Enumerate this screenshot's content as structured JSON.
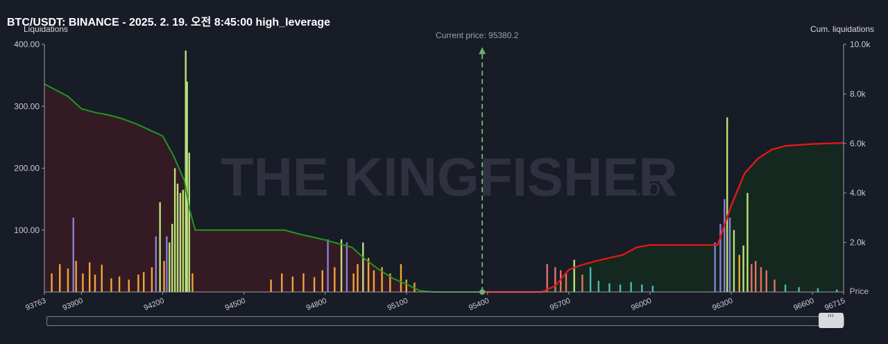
{
  "header": {
    "title": "BTC/USDT: BINANCE - 2025. 2. 19. 오전 8:45:00 high_leverage"
  },
  "watermark": {
    "text": "THE KINGFISHER",
    "suffix": ".io"
  },
  "colors": {
    "background": "#181c27",
    "long_cum": "#1f9a1f",
    "short_cum": "#e01818",
    "long_fill": "#3a1a22",
    "short_fill": "#15291f",
    "bar_orange": "#f0a63a",
    "bar_light_green": "#b9e27a",
    "bar_purple": "#8a7fd6",
    "bar_red": "#e8706a",
    "bar_teal": "#4fb7b7",
    "current_price_line": "#6cad6c"
  },
  "chart_data": {
    "type": "bar",
    "ylabel_left": "Liquidations",
    "ylabel_right": "Cum. liquidations",
    "xlabel": "Price",
    "xlim": [
      93763,
      96715
    ],
    "ylim_left": [
      0,
      400
    ],
    "ylim_right": [
      0,
      10000
    ],
    "y_ticks_left": [
      "400.00",
      "300.00",
      "200.00",
      "100.00"
    ],
    "y_ticks_right": [
      "10.0k",
      "8.0k",
      "6.0k",
      "4.0k",
      "2.0k"
    ],
    "x_ticks": [
      "93763",
      "93900",
      "94200",
      "94500",
      "94800",
      "95100",
      "95400",
      "95700",
      "96000",
      "96300",
      "96600",
      "96715"
    ],
    "current_price": 95380.2,
    "current_price_label": "Current price: 95380.2",
    "long_cumulative": [
      [
        93763,
        8400
      ],
      [
        93850,
        7900
      ],
      [
        93900,
        7400
      ],
      [
        93950,
        7250
      ],
      [
        94000,
        7150
      ],
      [
        94050,
        7000
      ],
      [
        94100,
        6800
      ],
      [
        94150,
        6550
      ],
      [
        94200,
        6300
      ],
      [
        94240,
        5500
      ],
      [
        94280,
        4500
      ],
      [
        94300,
        3300
      ],
      [
        94320,
        2500
      ],
      [
        94500,
        2500
      ],
      [
        94650,
        2500
      ],
      [
        94700,
        2350
      ],
      [
        94800,
        2100
      ],
      [
        94900,
        1800
      ],
      [
        94950,
        1300
      ],
      [
        95000,
        900
      ],
      [
        95050,
        550
      ],
      [
        95100,
        320
      ],
      [
        95150,
        50
      ],
      [
        95200,
        0
      ],
      [
        95380,
        0
      ]
    ],
    "short_cumulative": [
      [
        95380,
        0
      ],
      [
        95600,
        0
      ],
      [
        95650,
        250
      ],
      [
        95700,
        900
      ],
      [
        95750,
        1100
      ],
      [
        95800,
        1250
      ],
      [
        95900,
        1500
      ],
      [
        95950,
        1800
      ],
      [
        96000,
        1900
      ],
      [
        96100,
        1900
      ],
      [
        96200,
        1900
      ],
      [
        96250,
        1900
      ],
      [
        96300,
        3500
      ],
      [
        96350,
        4800
      ],
      [
        96400,
        5400
      ],
      [
        96450,
        5750
      ],
      [
        96500,
        5900
      ],
      [
        96600,
        5980
      ],
      [
        96715,
        6020
      ]
    ],
    "long_bars": [
      [
        93790,
        30,
        "orange"
      ],
      [
        93820,
        45,
        "orange"
      ],
      [
        93850,
        38,
        "orange"
      ],
      [
        93870,
        120,
        "purple"
      ],
      [
        93880,
        50,
        "orange"
      ],
      [
        93905,
        30,
        "orange"
      ],
      [
        93930,
        48,
        "orange"
      ],
      [
        93950,
        28,
        "orange"
      ],
      [
        93975,
        44,
        "orange"
      ],
      [
        94010,
        22,
        "orange"
      ],
      [
        94040,
        25,
        "orange"
      ],
      [
        94075,
        20,
        "orange"
      ],
      [
        94110,
        28,
        "orange"
      ],
      [
        94130,
        32,
        "orange"
      ],
      [
        94160,
        40,
        "orange"
      ],
      [
        94175,
        90,
        "purple"
      ],
      [
        94190,
        145,
        "green"
      ],
      [
        94205,
        50,
        "orange"
      ],
      [
        94215,
        90,
        "purple"
      ],
      [
        94225,
        80,
        "green"
      ],
      [
        94235,
        110,
        "green"
      ],
      [
        94245,
        200,
        "green"
      ],
      [
        94255,
        175,
        "green"
      ],
      [
        94265,
        160,
        "green"
      ],
      [
        94275,
        165,
        "green"
      ],
      [
        94285,
        390,
        "green"
      ],
      [
        94290,
        340,
        "green"
      ],
      [
        94298,
        225,
        "green"
      ],
      [
        94310,
        30,
        "orange"
      ],
      [
        94600,
        20,
        "orange"
      ],
      [
        94640,
        30,
        "orange"
      ],
      [
        94680,
        25,
        "orange"
      ],
      [
        94720,
        30,
        "orange"
      ],
      [
        94760,
        24,
        "orange"
      ],
      [
        94790,
        35,
        "orange"
      ],
      [
        94810,
        85,
        "purple"
      ],
      [
        94835,
        40,
        "orange"
      ],
      [
        94860,
        85,
        "green"
      ],
      [
        94880,
        80,
        "purple"
      ],
      [
        94905,
        30,
        "orange"
      ],
      [
        94920,
        45,
        "orange"
      ],
      [
        94940,
        80,
        "green"
      ],
      [
        94960,
        55,
        "orange"
      ],
      [
        94980,
        35,
        "orange"
      ],
      [
        95010,
        40,
        "orange"
      ],
      [
        95040,
        30,
        "orange"
      ],
      [
        95080,
        45,
        "orange"
      ],
      [
        95100,
        20,
        "orange"
      ],
      [
        95130,
        15,
        "orange"
      ]
    ],
    "short_bars": [
      [
        95620,
        45,
        "red"
      ],
      [
        95650,
        40,
        "red"
      ],
      [
        95670,
        35,
        "red"
      ],
      [
        95690,
        30,
        "red"
      ],
      [
        95720,
        52,
        "green"
      ],
      [
        95750,
        28,
        "red"
      ],
      [
        95780,
        40,
        "teal"
      ],
      [
        95810,
        18,
        "teal"
      ],
      [
        95850,
        14,
        "teal"
      ],
      [
        95890,
        12,
        "teal"
      ],
      [
        95930,
        16,
        "teal"
      ],
      [
        95970,
        12,
        "teal"
      ],
      [
        96010,
        10,
        "teal"
      ],
      [
        96240,
        80,
        "purple"
      ],
      [
        96260,
        110,
        "purple"
      ],
      [
        96275,
        150,
        "purple"
      ],
      [
        96285,
        282,
        "green"
      ],
      [
        96295,
        120,
        "purple"
      ],
      [
        96310,
        100,
        "green"
      ],
      [
        96330,
        60,
        "orange"
      ],
      [
        96345,
        75,
        "green"
      ],
      [
        96360,
        160,
        "green"
      ],
      [
        96375,
        45,
        "red"
      ],
      [
        96390,
        50,
        "red"
      ],
      [
        96410,
        40,
        "red"
      ],
      [
        96430,
        35,
        "red"
      ],
      [
        96460,
        20,
        "red"
      ],
      [
        96500,
        12,
        "teal"
      ],
      [
        96550,
        8,
        "teal"
      ],
      [
        96620,
        6,
        "teal"
      ],
      [
        96690,
        4,
        "teal"
      ]
    ]
  }
}
